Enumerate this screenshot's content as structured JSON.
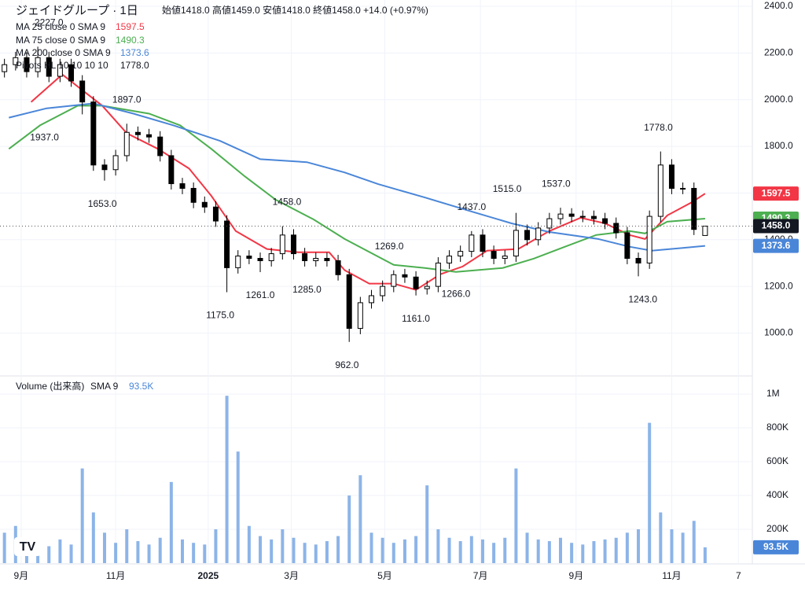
{
  "chart_data": {
    "type": "candlestick",
    "title": "ジェイドグループ · 1日",
    "ohlc_text": "始値1418.0 高値1459.0 安値1418.0 終値1458.0 +14.0 (+0.97%)",
    "xlim": [
      0,
      334
    ],
    "xticks": [
      {
        "value": 9.5,
        "label": "9月"
      },
      {
        "value": 52,
        "label": "11月"
      },
      {
        "value": 93.6,
        "label": "2025"
      },
      {
        "value": 131,
        "label": "3月"
      },
      {
        "value": 173,
        "label": "5月"
      },
      {
        "value": 216,
        "label": "7月"
      },
      {
        "value": 259,
        "label": "9月"
      },
      {
        "value": 302,
        "label": "11月"
      },
      {
        "value": 332,
        "label": "7"
      }
    ],
    "ylim": [
      823,
      2427
    ],
    "yticks": [
      {
        "value": 1000,
        "label": "1000.0"
      },
      {
        "value": 1200,
        "label": "1200.0"
      },
      {
        "value": 1400,
        "label": "1400.0"
      },
      {
        "value": 1600,
        "label": "1600.0"
      },
      {
        "value": 1800,
        "label": "1800.0"
      },
      {
        "value": 2000,
        "label": "2000.0"
      },
      {
        "value": 2200,
        "label": "2200.0"
      },
      {
        "value": 2400,
        "label": "2400.0"
      }
    ],
    "grid": true,
    "up_color": "#ffffff",
    "down_color": "#000000",
    "x": [
      2,
      7,
      12,
      17,
      22,
      27,
      32,
      37,
      42,
      47,
      52,
      57,
      62,
      67,
      72,
      77,
      82,
      87,
      92,
      97,
      102,
      107,
      112,
      117,
      122,
      127,
      132,
      137,
      142,
      147,
      152,
      157,
      162,
      167,
      172,
      177,
      182,
      187,
      192,
      197,
      202,
      207,
      212,
      217,
      222,
      227,
      232,
      237,
      242,
      247,
      252,
      257,
      262,
      267,
      272,
      277,
      282,
      287,
      292,
      297,
      302,
      307,
      312,
      317
    ],
    "open": [
      2120,
      2150,
      2180,
      2120,
      2180,
      2100,
      2150,
      2080,
      1990,
      1720,
      1700,
      1760,
      1860,
      1850,
      1840,
      1760,
      1640,
      1620,
      1560,
      1540,
      1480,
      1280,
      1330,
      1320,
      1310,
      1340,
      1420,
      1340,
      1310,
      1320,
      1310,
      1250,
      1020,
      1130,
      1160,
      1200,
      1250,
      1240,
      1190,
      1200,
      1300,
      1330,
      1350,
      1420,
      1350,
      1320,
      1330,
      1440,
      1400,
      1450,
      1490,
      1510,
      1500,
      1500,
      1490,
      1470,
      1430,
      1320,
      1300,
      1500,
      1720,
      1620,
      1620,
      1418
    ],
    "high": [
      2175,
      2205,
      2205,
      2227,
      2205,
      2175,
      2175,
      2105,
      2015,
      1745,
      1785,
      1897,
      1885,
      1875,
      1865,
      1785,
      1665,
      1645,
      1585,
      1565,
      1505,
      1355,
      1355,
      1345,
      1365,
      1458,
      1445,
      1365,
      1345,
      1345,
      1335,
      1275,
      1155,
      1185,
      1225,
      1269,
      1275,
      1265,
      1225,
      1325,
      1355,
      1375,
      1437,
      1445,
      1375,
      1355,
      1515,
      1465,
      1475,
      1515,
      1537,
      1535,
      1525,
      1525,
      1515,
      1495,
      1455,
      1345,
      1525,
      1778,
      1745,
      1645,
      1645,
      1459
    ],
    "low": [
      2095,
      2125,
      2095,
      2095,
      2075,
      2075,
      2055,
      1937,
      1695,
      1653,
      1675,
      1735,
      1825,
      1815,
      1735,
      1615,
      1595,
      1535,
      1515,
      1455,
      1175,
      1255,
      1295,
      1261,
      1285,
      1315,
      1315,
      1285,
      1285,
      1285,
      1225,
      962,
      995,
      1105,
      1135,
      1175,
      1215,
      1161,
      1165,
      1175,
      1275,
      1305,
      1325,
      1325,
      1295,
      1295,
      1305,
      1375,
      1375,
      1425,
      1465,
      1475,
      1475,
      1465,
      1445,
      1405,
      1295,
      1243,
      1275,
      1475,
      1595,
      1595,
      1420,
      1418
    ],
    "close": [
      2150,
      2180,
      2120,
      2180,
      2100,
      2150,
      2080,
      1990,
      1720,
      1700,
      1760,
      1860,
      1850,
      1840,
      1760,
      1640,
      1620,
      1560,
      1540,
      1480,
      1280,
      1330,
      1320,
      1310,
      1340,
      1420,
      1340,
      1310,
      1320,
      1310,
      1250,
      1020,
      1130,
      1160,
      1200,
      1250,
      1240,
      1190,
      1200,
      1300,
      1330,
      1350,
      1420,
      1350,
      1320,
      1330,
      1440,
      1400,
      1450,
      1490,
      1510,
      1500,
      1500,
      1490,
      1470,
      1430,
      1320,
      1300,
      1500,
      1720,
      1620,
      1620,
      1444,
      1458
    ],
    "last_price": {
      "value": 1458,
      "label": "1458.0"
    },
    "series": [
      {
        "name": "MA 25 close 0 SMA 9",
        "color": "#f23645",
        "x": [
          14,
          28,
          46,
          57,
          71,
          85,
          95,
          106,
          120,
          134,
          148,
          155,
          166,
          177,
          187,
          198,
          208,
          219,
          233,
          247,
          261,
          272,
          283,
          290,
          300,
          311,
          317
        ],
        "values": [
          1990,
          2108,
          1974,
          1856,
          1789,
          1705,
          1588,
          1437,
          1360,
          1346,
          1346,
          1269,
          1212,
          1212,
          1185,
          1252,
          1285,
          1353,
          1360,
          1437,
          1494,
          1470,
          1420,
          1403,
          1504,
          1560,
          1597.5
        ]
      },
      {
        "name": "MA 75 close 0 SMA 9",
        "color": "#4caf50",
        "x": [
          4,
          18,
          35,
          46,
          67,
          81,
          95,
          110,
          124,
          141,
          155,
          177,
          191,
          205,
          226,
          240,
          254,
          268,
          283,
          290,
          300,
          317
        ],
        "values": [
          1789,
          1890,
          1974,
          1974,
          1940,
          1890,
          1789,
          1672,
          1571,
          1487,
          1403,
          1292,
          1279,
          1262,
          1279,
          1319,
          1370,
          1420,
          1437,
          1427,
          1477,
          1490.3
        ]
      },
      {
        "name": "MA 200 close 0 SMA 9",
        "color": "#4a86d8",
        "x": [
          4,
          21,
          42,
          60,
          78,
          99,
          117,
          138,
          155,
          170,
          191,
          212,
          230,
          247,
          269,
          283,
          293,
          307,
          317
        ],
        "values": [
          1923,
          1963,
          1984,
          1940,
          1890,
          1823,
          1745,
          1732,
          1688,
          1638,
          1581,
          1521,
          1470,
          1433,
          1403,
          1370,
          1353,
          1365,
          1373.6
        ]
      }
    ],
    "pivots_legend": {
      "name": "Pivots HL 10 10 10 10",
      "value": "1778.0"
    },
    "pivots": [
      {
        "value": 2227,
        "label": "2227.0",
        "x": 22,
        "kind": "high"
      },
      {
        "value": 1937,
        "label": "1937.0",
        "x": 20,
        "kind": "low"
      },
      {
        "value": 1897,
        "label": "1897.0",
        "x": 57,
        "kind": "high"
      },
      {
        "value": 1653,
        "label": "1653.0",
        "x": 46,
        "kind": "low"
      },
      {
        "value": 1458,
        "label": "1458.0",
        "x": 129,
        "kind": "high"
      },
      {
        "value": 1175,
        "label": "1175.0",
        "x": 99,
        "kind": "low"
      },
      {
        "value": 1261,
        "label": "1261.0",
        "x": 117,
        "kind": "low"
      },
      {
        "value": 1285,
        "label": "1285.0",
        "x": 138,
        "kind": "low"
      },
      {
        "value": 962,
        "label": "962.0",
        "x": 156,
        "kind": "low"
      },
      {
        "value": 1269,
        "label": "1269.0",
        "x": 175,
        "kind": "high"
      },
      {
        "value": 1161,
        "label": "1161.0",
        "x": 187,
        "kind": "low"
      },
      {
        "value": 1266,
        "label": "1266.0",
        "x": 205,
        "kind": "low"
      },
      {
        "value": 1437,
        "label": "1437.0",
        "x": 212,
        "kind": "high"
      },
      {
        "value": 1515,
        "label": "1515.0",
        "x": 228,
        "kind": "high"
      },
      {
        "value": 1537,
        "label": "1537.0",
        "x": 250,
        "kind": "high"
      },
      {
        "value": 1243,
        "label": "1243.0",
        "x": 289,
        "kind": "low"
      },
      {
        "value": 1778,
        "label": "1778.0",
        "x": 296,
        "kind": "high"
      }
    ],
    "volume": {
      "name": "Volume (出来高)",
      "sma_name": "SMA 9",
      "color": "#8cb4e8",
      "sma": {
        "value": 93500,
        "label": "93.5K"
      },
      "ylim": [
        0,
        1098000
      ],
      "yticks": [
        {
          "value": 200000,
          "label": "200K"
        },
        {
          "value": 400000,
          "label": "400K"
        },
        {
          "value": 600000,
          "label": "600K"
        },
        {
          "value": 800000,
          "label": "800K"
        },
        {
          "value": 1000000,
          "label": "1M"
        }
      ],
      "values": [
        180000,
        220000,
        150000,
        120000,
        100000,
        140000,
        110000,
        560000,
        300000,
        180000,
        120000,
        200000,
        130000,
        110000,
        150000,
        480000,
        140000,
        120000,
        110000,
        200000,
        990000,
        660000,
        220000,
        160000,
        140000,
        200000,
        150000,
        120000,
        110000,
        130000,
        160000,
        400000,
        520000,
        180000,
        150000,
        120000,
        140000,
        160000,
        460000,
        200000,
        150000,
        130000,
        160000,
        140000,
        120000,
        150000,
        560000,
        180000,
        140000,
        130000,
        150000,
        120000,
        110000,
        130000,
        140000,
        150000,
        180000,
        200000,
        830000,
        300000,
        200000,
        180000,
        250000,
        93500
      ]
    }
  }
}
